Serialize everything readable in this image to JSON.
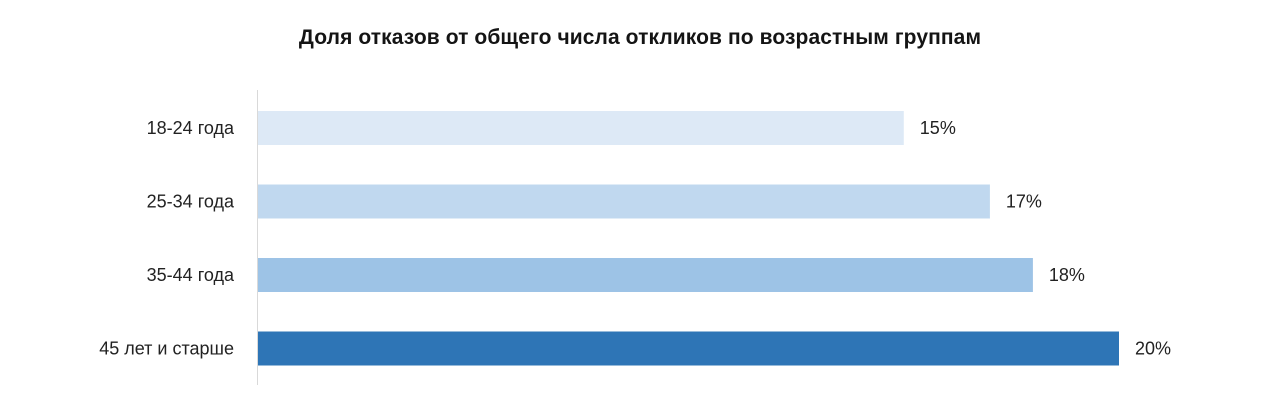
{
  "chart_data": {
    "type": "bar",
    "orientation": "horizontal",
    "title": "Доля отказов от общего числа откликов по возрастным группам",
    "categories": [
      "18-24 года",
      "25-34 года",
      "35-44 года",
      "45 лет и старше"
    ],
    "values": [
      15,
      17,
      18,
      20
    ],
    "value_labels": [
      "15%",
      "17%",
      "18%",
      "20%"
    ],
    "unit": "%",
    "xlim": [
      0,
      20
    ],
    "grid": false,
    "legend": "none",
    "colors": [
      "#dde9f6",
      "#c0d8ef",
      "#9dc3e6",
      "#2e75b6"
    ]
  }
}
